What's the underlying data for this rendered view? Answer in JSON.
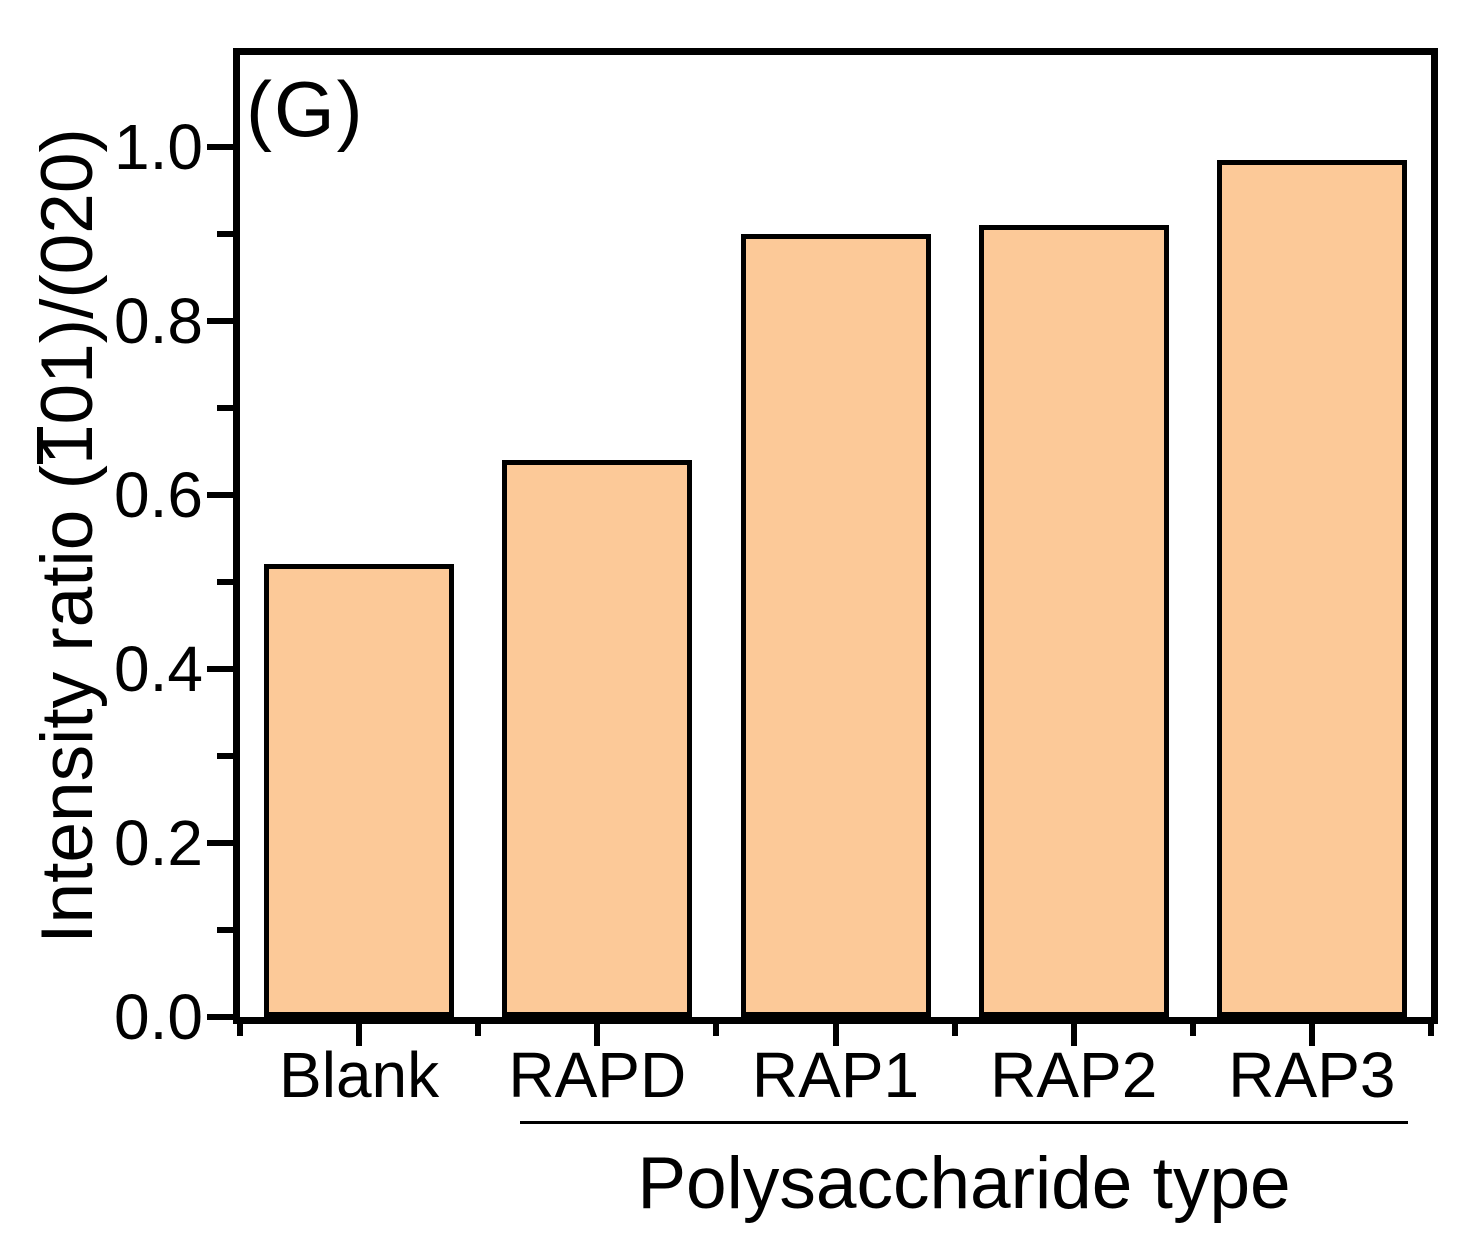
{
  "panel_label": "(G)",
  "chart_data": {
    "type": "bar",
    "categories": [
      "Blank",
      "RAPD",
      "RAP1",
      "RAP2",
      "RAP3"
    ],
    "values": [
      0.52,
      0.64,
      0.9,
      0.91,
      0.985
    ],
    "title": "",
    "xlabel": "Polysaccharide type",
    "ylabel": "Intensity ratio (1̄01)/(020)",
    "ylabel_parts": {
      "prefix": "Intensity ratio (",
      "overbar_digit": "1",
      "suffix": "01)/(020)"
    },
    "ylim": [
      0.0,
      1.1
    ],
    "yticks": [
      0.0,
      0.2,
      0.4,
      0.6,
      0.8,
      1.0
    ],
    "ytick_labels": [
      "0.0",
      "0.2",
      "0.4",
      "0.6",
      "0.8",
      "1.0"
    ],
    "y_minor_tick_step": 0.1,
    "grid": false,
    "legend": null,
    "bar_fill_color": "#FCC998",
    "bar_edge_color": "#000000",
    "x_group_underline": {
      "from_category": "RAPD",
      "to_category": "RAP3"
    }
  }
}
